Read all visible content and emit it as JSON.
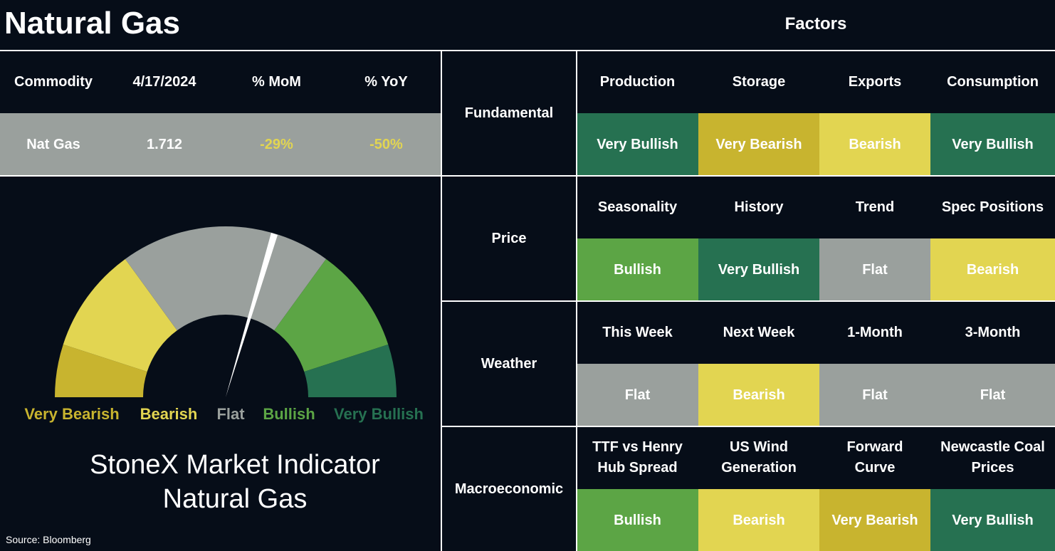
{
  "header": {
    "title": "Natural Gas",
    "factors_title": "Factors"
  },
  "commodity_table": {
    "columns": [
      "Commodity",
      "4/17/2024",
      "% MoM",
      "% YoY"
    ],
    "row": [
      "Nat Gas",
      "1.712",
      "-29%",
      "-50%"
    ]
  },
  "gauge": {
    "segments": [
      {
        "label": "Very Bearish",
        "color": "#c8b42f"
      },
      {
        "label": "Bearish",
        "color": "#e2d551"
      },
      {
        "label": "Flat",
        "color": "#9aa09d"
      },
      {
        "label": "Bullish",
        "color": "#5ca545"
      },
      {
        "label": "Very Bullish",
        "color": "#267151"
      }
    ],
    "title_lines": [
      "StoneX Market Indicator",
      "Natural Gas"
    ]
  },
  "source": "Source: Bloomberg",
  "factor_groups": [
    {
      "name": "Fundamental",
      "factors": [
        {
          "name": [
            "Production"
          ],
          "signal": "Very Bullish"
        },
        {
          "name": [
            "Storage"
          ],
          "signal": "Very Bearish"
        },
        {
          "name": [
            "Exports"
          ],
          "signal": "Bearish"
        },
        {
          "name": [
            "Consumption"
          ],
          "signal": "Very Bullish"
        }
      ]
    },
    {
      "name": "Price",
      "factors": [
        {
          "name": [
            "Seasonality"
          ],
          "signal": "Bullish"
        },
        {
          "name": [
            "History"
          ],
          "signal": "Very Bullish"
        },
        {
          "name": [
            "Trend"
          ],
          "signal": "Flat"
        },
        {
          "name": [
            "Spec Positions"
          ],
          "signal": "Bearish"
        }
      ]
    },
    {
      "name": "Weather",
      "factors": [
        {
          "name": [
            "This Week"
          ],
          "signal": "Flat"
        },
        {
          "name": [
            "Next Week"
          ],
          "signal": "Bearish"
        },
        {
          "name": [
            "1-Month"
          ],
          "signal": "Flat"
        },
        {
          "name": [
            "3-Month"
          ],
          "signal": "Flat"
        }
      ]
    },
    {
      "name": "Macroeconomic",
      "factors": [
        {
          "name": [
            "TTF vs Henry",
            "Hub Spread"
          ],
          "signal": "Bullish"
        },
        {
          "name": [
            "US Wind",
            "Generation"
          ],
          "signal": "Bearish"
        },
        {
          "name": [
            "Forward",
            "Curve"
          ],
          "signal": "Very Bearish"
        },
        {
          "name": [
            "Newcastle Coal",
            "Prices"
          ],
          "signal": "Very Bullish"
        }
      ]
    }
  ]
}
